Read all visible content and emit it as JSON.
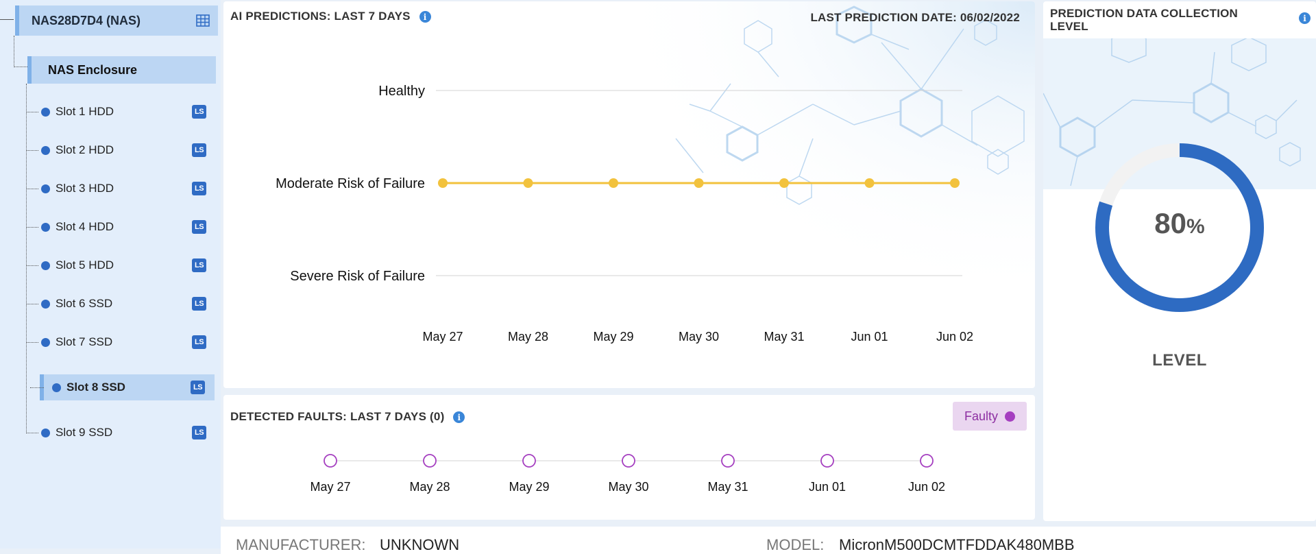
{
  "tree": {
    "device": "NAS28D7D4 (NAS)",
    "enclosure": "NAS Enclosure",
    "badge": "LS",
    "slots": [
      {
        "label": "Slot 1 HDD"
      },
      {
        "label": "Slot 2 HDD"
      },
      {
        "label": "Slot 3 HDD"
      },
      {
        "label": "Slot 4 HDD"
      },
      {
        "label": "Slot 5 HDD"
      },
      {
        "label": "Slot 6 SSD"
      },
      {
        "label": "Slot 7 SSD"
      },
      {
        "label": "Slot 8 SSD",
        "selected": true
      },
      {
        "label": "Slot 9 SSD"
      }
    ]
  },
  "predictions": {
    "title": "AI PREDICTIONS: LAST 7 DAYS",
    "last_date": "LAST PREDICTION DATE: 06/02/2022",
    "chart_data": {
      "type": "line",
      "title": "",
      "categories": [
        "May 27",
        "May 28",
        "May 29",
        "May 30",
        "May 31",
        "Jun 01",
        "Jun 02"
      ],
      "y_levels": [
        "Healthy",
        "Moderate Risk of Failure",
        "Severe Risk of Failure"
      ],
      "series": [
        {
          "values": [
            "Moderate Risk of Failure",
            "Moderate Risk of Failure",
            "Moderate Risk of Failure",
            "Moderate Risk of Failure",
            "Moderate Risk of Failure",
            "Moderate Risk of Failure",
            "Moderate Risk of Failure"
          ],
          "color": "#f2c23d"
        }
      ],
      "grid": true
    }
  },
  "faults": {
    "title": "DETECTED FAULTS: LAST 7 DAYS (0)",
    "legend": "Faulty",
    "legend_color": "#a53fc0",
    "dates": [
      "May 27",
      "May 28",
      "May 29",
      "May 30",
      "May 31",
      "Jun 01",
      "Jun 02"
    ]
  },
  "collection": {
    "title": "PREDICTION DATA COLLECTION LEVEL",
    "value": 80,
    "value_text": "80",
    "unit": "%",
    "label": "LEVEL",
    "color": "#2e6bc2"
  },
  "details": {
    "manufacturer_label": "MANUFACTURER:",
    "manufacturer": "UNKNOWN",
    "model_label": "MODEL:",
    "model": "MicronM500DCMTFDDAK480MBB"
  }
}
